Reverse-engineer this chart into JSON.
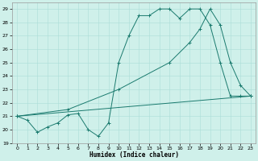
{
  "xlabel": "Humidex (Indice chaleur)",
  "bg_color": "#cff0ea",
  "line_color": "#1a7a6e",
  "grid_color": "#aaddd8",
  "xlim": [
    -0.5,
    23.5
  ],
  "ylim": [
    19,
    29.5
  ],
  "yticks": [
    19,
    20,
    21,
    22,
    23,
    24,
    25,
    26,
    27,
    28,
    29
  ],
  "xticks": [
    0,
    1,
    2,
    3,
    4,
    5,
    6,
    7,
    8,
    9,
    10,
    11,
    12,
    13,
    14,
    15,
    16,
    17,
    18,
    19,
    20,
    21,
    22,
    23
  ],
  "series": [
    {
      "x": [
        0,
        1,
        2,
        3,
        4,
        5,
        6,
        7,
        8,
        9,
        10,
        11,
        12,
        13,
        14,
        15,
        16,
        17,
        18,
        19,
        20,
        21,
        22,
        23
      ],
      "y": [
        21.0,
        20.7,
        19.8,
        20.2,
        20.5,
        21.1,
        21.2,
        20.0,
        19.5,
        20.5,
        25.0,
        27.0,
        28.5,
        28.5,
        29.0,
        29.0,
        28.3,
        29.0,
        29.0,
        27.8,
        25.0,
        22.5,
        22.5,
        22.5
      ]
    },
    {
      "x": [
        0,
        5,
        10,
        15,
        17,
        18,
        19,
        20,
        21,
        22,
        23
      ],
      "y": [
        21.0,
        21.5,
        23.0,
        25.0,
        26.5,
        27.5,
        29.0,
        27.8,
        25.0,
        23.3,
        22.5
      ]
    },
    {
      "x": [
        0,
        23
      ],
      "y": [
        21.0,
        22.5
      ]
    }
  ]
}
